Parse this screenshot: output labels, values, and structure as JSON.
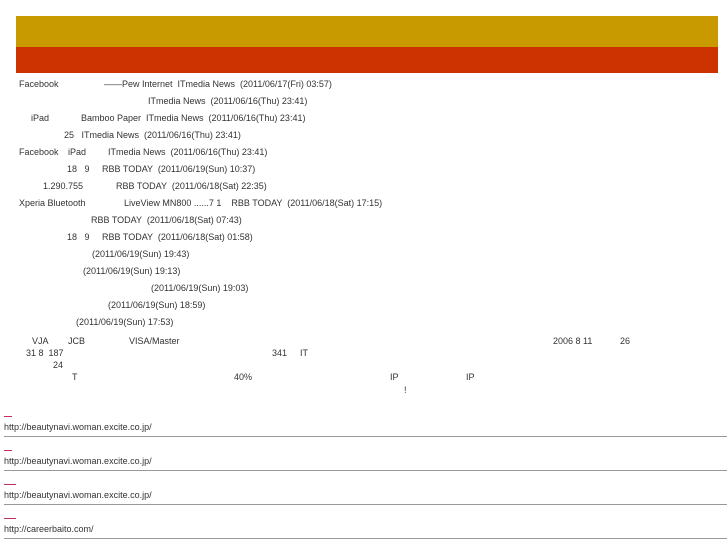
{
  "colors": {
    "header_gold": "#c99a00",
    "header_red": "#cc3300",
    "link_dash": "#c0305a"
  },
  "news": [
    [
      "Facebook",
      "——Pew Internet  ITmedia News  (2011/06/17(Fri) 03:57)"
    ],
    [
      "ITmedia News  (2011/06/16(Thu) 23:41)"
    ],
    [
      "iPad",
      "Bamboo Paper  ITmedia News  (2011/06/16(Thu) 23:41)"
    ],
    [
      "25   ITmedia News  (2011/06/16(Thu) 23:41)"
    ],
    [
      "Facebook",
      "iPad",
      "ITmedia News  (2011/06/16(Thu) 23:41)"
    ],
    [
      "18   9     RBB TODAY  (2011/06/19(Sun) 10:37)"
    ],
    [
      "1.290.755",
      "RBB TODAY  (2011/06/18(Sat) 22:35)"
    ],
    [
      "Xperia Bluetooth",
      "LiveView MN800 ......7 1    RBB TODAY  (2011/06/18(Sat) 17:15)"
    ],
    [
      "RBB TODAY  (2011/06/18(Sat) 07:43)"
    ],
    [
      "18   9     RBB TODAY  (2011/06/18(Sat) 01:58)"
    ],
    [
      "(2011/06/19(Sun) 19:43)"
    ],
    [
      "(2011/06/19(Sun) 19:13)"
    ],
    [
      "(2011/06/19(Sun) 19:03)"
    ],
    [
      "(2011/06/19(Sun) 18:59)"
    ],
    [
      "(2011/06/19(Sun) 17:53)"
    ]
  ],
  "block": {
    "vja": "VJA",
    "jcb": "JCB",
    "visa": "VISA/Master",
    "date": "2006 8 11",
    "n26": "26",
    "l2a": "31 8  187",
    "l2b": "341",
    "l2c": "IT",
    "l3": "24",
    "l4a": "T",
    "l4b": "40%",
    "l4c": "IP",
    "l4d": "IP",
    "l5": "!"
  },
  "links": [
    "http://beautynavi.woman.excite.co.jp/",
    "http://beautynavi.woman.excite.co.jp/",
    "http://beautynavi.woman.excite.co.jp/",
    "http://careerbaito.com/"
  ]
}
